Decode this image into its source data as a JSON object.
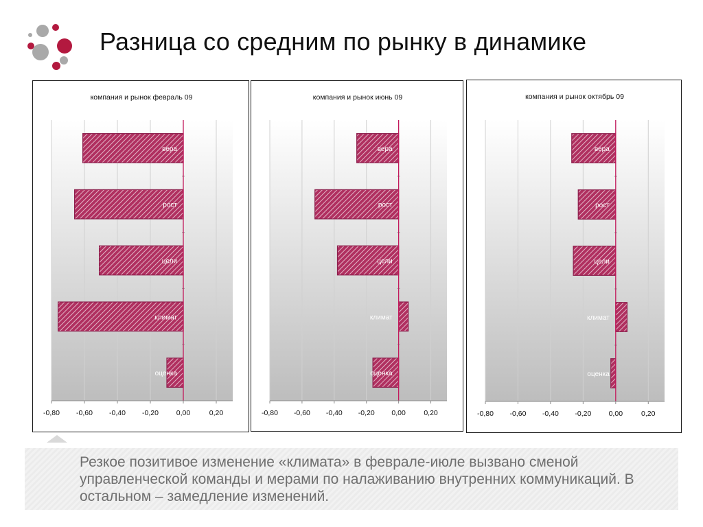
{
  "slide": {
    "title": "Разница со средним по рынку в динамике",
    "note": "Резкое позитивое изменение «климата» в феврале-июле вызвано сменой управленческой команды и мерами по налаживанию внутренних коммуникаций. В остальном – замедление изменений."
  },
  "colors": {
    "bar_fill": "#b03060",
    "bar_stripe": "#e8c4d2",
    "bar_border": "#8c1f4d",
    "zero_line": "#c2185b",
    "logo_gray": "#a9a9a9",
    "logo_crimson": "#b3193f"
  },
  "icons": [
    "logo-dots-icon"
  ],
  "chart_data": [
    {
      "type": "bar",
      "orientation": "horizontal",
      "title": "компания и рынок февраль 09",
      "categories": [
        "вера",
        "рост",
        "цели",
        "климат",
        "оценка"
      ],
      "values": [
        -0.61,
        -0.66,
        -0.51,
        -0.76,
        -0.1
      ],
      "xlim": [
        -0.8,
        0.3
      ],
      "xticks": [
        "-0,80",
        "-0,60",
        "-0,40",
        "-0,20",
        "0,00",
        "0,20"
      ],
      "grid": true,
      "legend": "none"
    },
    {
      "type": "bar",
      "orientation": "horizontal",
      "title": "компания и рынок июнь 09",
      "categories": [
        "вера",
        "рост",
        "цели",
        "климат",
        "оценка"
      ],
      "values": [
        -0.26,
        -0.52,
        -0.38,
        0.06,
        -0.16
      ],
      "xlim": [
        -0.8,
        0.3
      ],
      "xticks": [
        "-0,80",
        "-0,60",
        "-0,40",
        "-0,20",
        "0,00",
        "0,20"
      ],
      "grid": true,
      "legend": "none"
    },
    {
      "type": "bar",
      "orientation": "horizontal",
      "title": "компания и рынок октябрь 09",
      "categories": [
        "вера",
        "рост",
        "цели",
        "климат",
        "оценка"
      ],
      "values": [
        -0.27,
        -0.23,
        -0.26,
        0.07,
        -0.03
      ],
      "xlim": [
        -0.8,
        0.3
      ],
      "xticks": [
        "-0,80",
        "-0,60",
        "-0,40",
        "-0,20",
        "0,00",
        "0,20"
      ],
      "grid": true,
      "legend": "none"
    }
  ]
}
